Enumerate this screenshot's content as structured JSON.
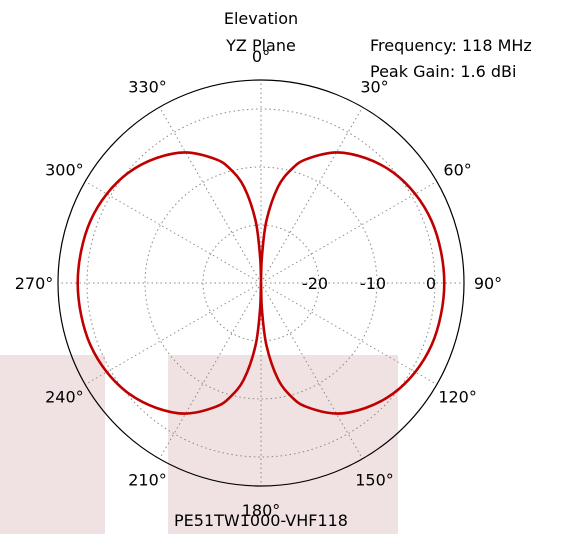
{
  "chart_data": {
    "type": "line",
    "projection": "polar",
    "title_lines": [
      "Elevation",
      "YZ Plane"
    ],
    "info_lines": [
      "Frequency: 118 MHz",
      "Peak Gain: 1.6 dBi"
    ],
    "caption": "PE51TW1000-VHF118",
    "angle_ticks": [
      "0°",
      "30°",
      "60°",
      "90°",
      "120°",
      "150°",
      "180°",
      "210°",
      "240°",
      "270°",
      "300°",
      "330°"
    ],
    "angle_direction": "clockwise",
    "angle_zero_location": "top",
    "radial_ticks": [
      "-20",
      "-10",
      "0"
    ],
    "radial_tick_values": [
      -20,
      -10,
      0
    ],
    "radial_range": [
      -30,
      5
    ],
    "grid": true,
    "series": [
      {
        "color": "#c00000",
        "angles_deg": [
          0,
          2,
          5,
          10,
          15,
          20,
          30,
          40,
          50,
          60,
          70,
          80,
          90,
          100,
          110,
          120,
          130,
          140,
          150,
          160,
          165,
          170,
          175,
          178,
          180,
          182,
          185,
          190,
          195,
          200,
          210,
          220,
          230,
          240,
          250,
          260,
          270,
          280,
          290,
          300,
          310,
          320,
          330,
          340,
          345,
          350,
          355,
          358,
          360
        ],
        "gain_dbi": [
          -30,
          -25.5,
          -19.2,
          -13.2,
          -9.7,
          -7.3,
          -4.0,
          -1.9,
          -0.3,
          0.7,
          1.3,
          1.5,
          1.6,
          1.5,
          1.3,
          0.7,
          -0.3,
          -1.9,
          -4.0,
          -7.3,
          -9.7,
          -13.2,
          -19.2,
          -25.5,
          -30,
          -25.5,
          -19.2,
          -13.2,
          -9.7,
          -7.3,
          -4.0,
          -1.9,
          -0.3,
          0.7,
          1.3,
          1.5,
          1.6,
          1.5,
          1.3,
          0.7,
          -0.3,
          -1.9,
          -4.0,
          -7.3,
          -9.7,
          -13.2,
          -19.2,
          -25.5,
          -30
        ]
      }
    ]
  },
  "colors": {
    "trace": "#c00000",
    "grid": "#888888",
    "watermark": "#f0e2e2"
  }
}
